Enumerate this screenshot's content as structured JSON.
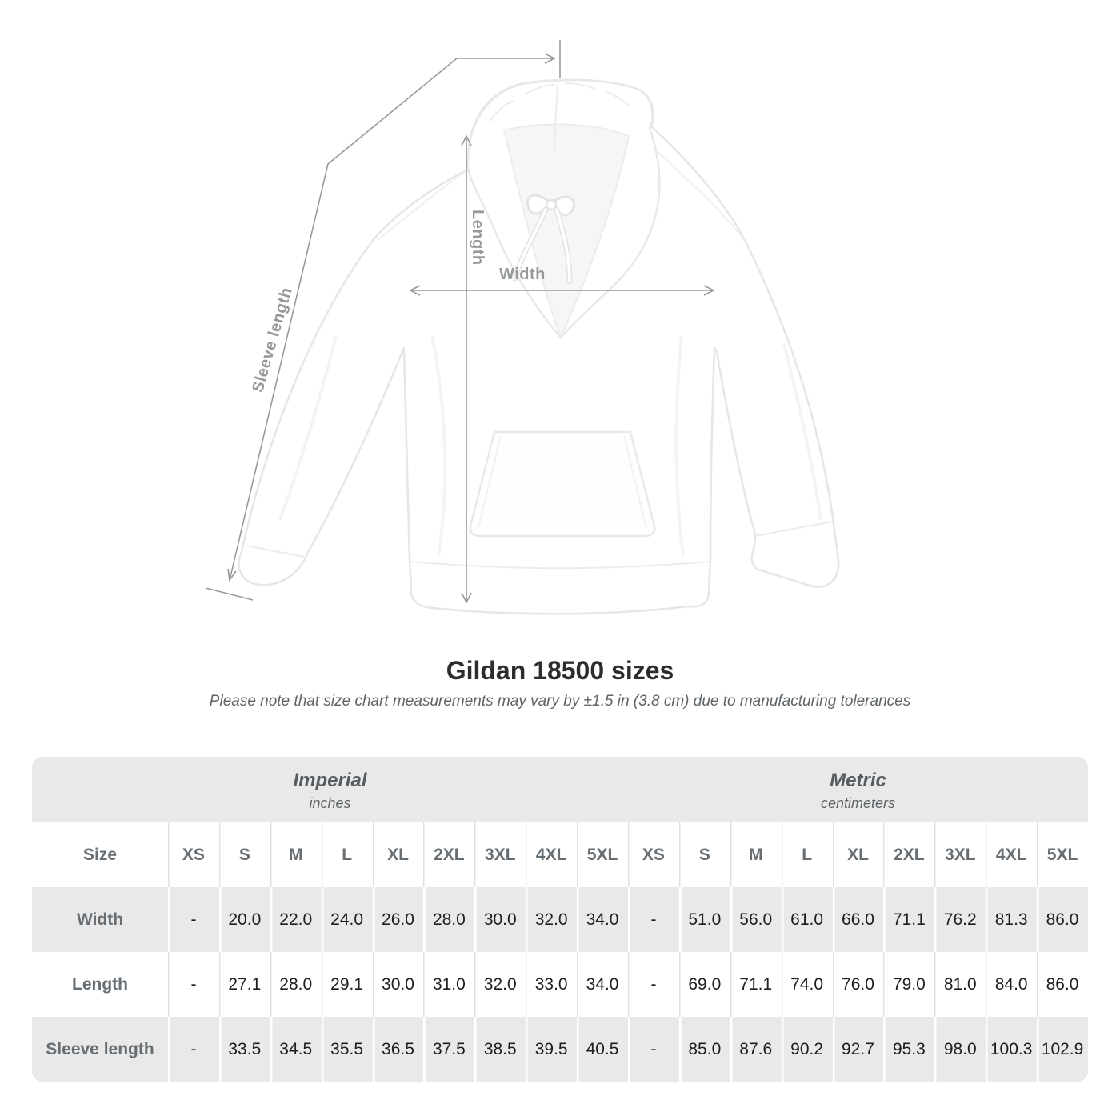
{
  "title": "Gildan 18500 sizes",
  "subtitle": "Please note that size chart measurements may vary by ±1.5 in (3.8 cm) due to manufacturing tolerances",
  "diagram": {
    "labels": {
      "length": "Length",
      "width": "Width",
      "sleeve": "Sleeve length"
    }
  },
  "colors": {
    "table_band": "#e9e9e9",
    "header_text": "#676e73",
    "measure_line": "#96999b"
  },
  "chart_data": {
    "type": "table",
    "title": "Gildan 18500 sizes",
    "size_header": "Size",
    "unit_groups": [
      {
        "label": "Imperial",
        "sublabel": "inches"
      },
      {
        "label": "Metric",
        "sublabel": "centimeters"
      }
    ],
    "sizes": [
      "XS",
      "S",
      "M",
      "L",
      "XL",
      "2XL",
      "3XL",
      "4XL",
      "5XL"
    ],
    "rows": [
      {
        "key": "width",
        "label": "Width",
        "imperial": [
          "-",
          "20.0",
          "22.0",
          "24.0",
          "26.0",
          "28.0",
          "30.0",
          "32.0",
          "34.0"
        ],
        "metric": [
          "-",
          "51.0",
          "56.0",
          "61.0",
          "66.0",
          "71.1",
          "76.2",
          "81.3",
          "86.0"
        ]
      },
      {
        "key": "length",
        "label": "Length",
        "imperial": [
          "-",
          "27.1",
          "28.0",
          "29.1",
          "30.0",
          "31.0",
          "32.0",
          "33.0",
          "34.0"
        ],
        "metric": [
          "-",
          "69.0",
          "71.1",
          "74.0",
          "76.0",
          "79.0",
          "81.0",
          "84.0",
          "86.0"
        ]
      },
      {
        "key": "sleeve",
        "label": "Sleeve length",
        "imperial": [
          "-",
          "33.5",
          "34.5",
          "35.5",
          "36.5",
          "37.5",
          "38.5",
          "39.5",
          "40.5"
        ],
        "metric": [
          "-",
          "85.0",
          "87.6",
          "90.2",
          "92.7",
          "95.3",
          "98.0",
          "100.3",
          "102.9"
        ]
      }
    ]
  }
}
